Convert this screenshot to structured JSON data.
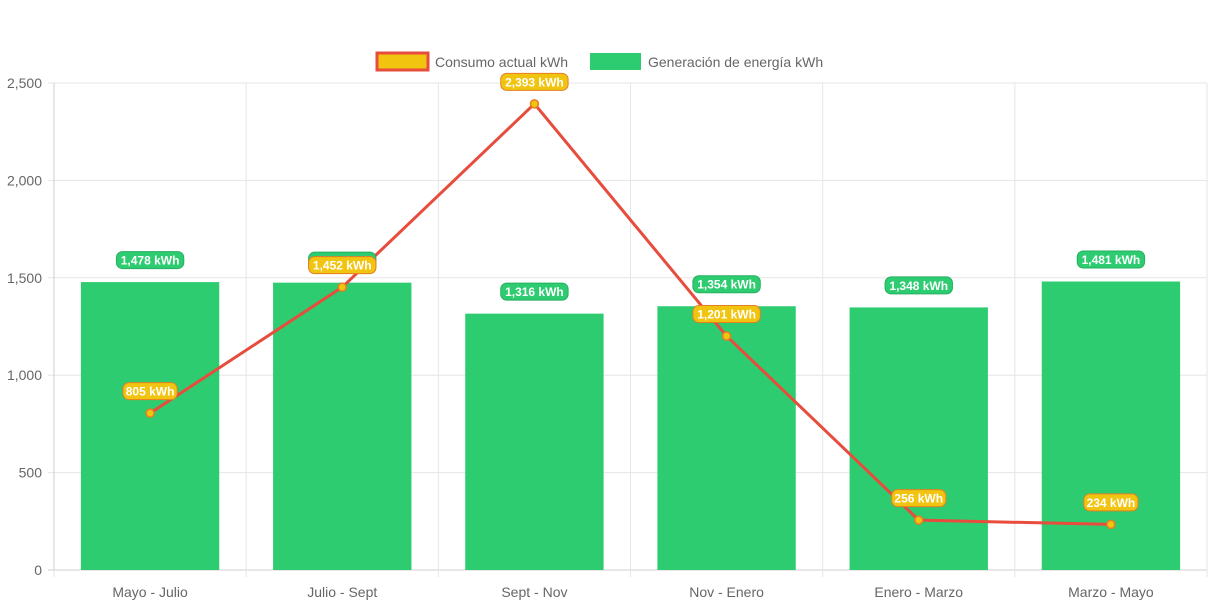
{
  "chart_data": {
    "type": "bar",
    "categories": [
      "Mayo - Julio",
      "Julio - Sept",
      "Sept - Nov",
      "Nov - Enero",
      "Enero - Marzo",
      "Marzo - Mayo"
    ],
    "ylim": [
      0,
      2500
    ],
    "yticks": [
      0,
      500,
      1000,
      1500,
      2000,
      2500
    ],
    "ytick_labels": [
      "0",
      "500",
      "1,000",
      "1,500",
      "2,000",
      "2,500"
    ],
    "grid": true,
    "legend_position": "top-center",
    "series": [
      {
        "name": "Consumo actual kWh",
        "type": "line",
        "values": [
          805,
          1452,
          2393,
          1201,
          256,
          234
        ],
        "labels": [
          "805 kWh",
          "1,452 kWh",
          "2,393 kWh",
          "1,201 kWh",
          "256 kWh",
          "234 kWh"
        ],
        "color": "#e74c3c",
        "fill_color": "#f1c40f"
      },
      {
        "name": "Generación de energía kWh",
        "type": "bar",
        "values": [
          1478,
          1475,
          1316,
          1354,
          1348,
          1481
        ],
        "labels": [
          "1,478 kWh",
          "1,475 kWh",
          "1,316 kWh",
          "1,354 kWh",
          "1,348 kWh",
          "1,481 kWh"
        ],
        "color": "#2ecc71"
      }
    ]
  }
}
